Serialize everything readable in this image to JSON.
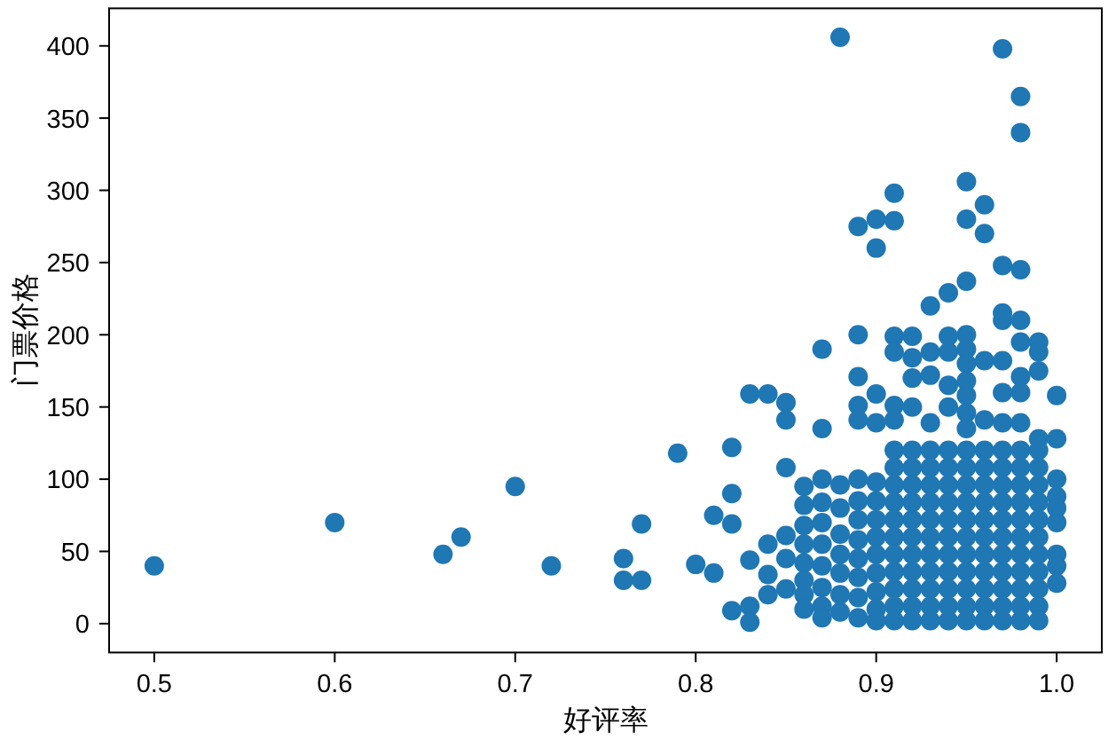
{
  "chart_data": {
    "type": "scatter",
    "xlabel": "好评率",
    "ylabel": "门票价格",
    "color": "#1f77b4",
    "marker": "circle",
    "xlim": [
      0.475,
      1.025
    ],
    "ylim": [
      -20,
      426
    ],
    "xticks": [
      0.5,
      0.6,
      0.7,
      0.8,
      0.9,
      {
        "value": 1.0,
        "label": "1.0"
      }
    ],
    "yticks": [
      0,
      50,
      100,
      150,
      200,
      250,
      300,
      350,
      400
    ],
    "x": [
      0.5,
      0.6,
      0.66,
      0.67,
      0.7,
      0.72,
      0.76,
      0.76,
      0.77,
      0.77,
      0.79,
      0.8,
      0.81,
      0.81,
      0.82,
      0.82,
      0.82,
      0.82,
      0.83,
      0.83,
      0.83,
      0.83,
      0.84,
      0.84,
      0.84,
      0.84,
      0.85,
      0.85,
      0.85,
      0.85,
      0.85,
      0.85,
      0.86,
      0.86,
      0.86,
      0.86,
      0.86,
      0.86,
      0.86,
      0.86,
      0.87,
      0.87,
      0.87,
      0.87,
      0.87,
      0.87,
      0.87,
      0.87,
      0.87,
      0.87,
      0.88,
      0.88,
      0.88,
      0.88,
      0.88,
      0.88,
      0.88,
      0.88,
      0.89,
      0.89,
      0.89,
      0.89,
      0.89,
      0.89,
      0.89,
      0.89,
      0.89,
      0.89,
      0.89,
      0.89,
      0.89,
      0.9,
      0.9,
      0.9,
      0.9,
      0.9,
      0.9,
      0.9,
      0.9,
      0.9,
      0.9,
      0.9,
      0.9,
      0.9,
      0.91,
      0.91,
      0.91,
      0.91,
      0.91,
      0.91,
      0.91,
      0.91,
      0.91,
      0.91,
      0.91,
      0.91,
      0.91,
      0.91,
      0.91,
      0.91,
      0.91,
      0.92,
      0.92,
      0.92,
      0.92,
      0.92,
      0.92,
      0.92,
      0.92,
      0.92,
      0.92,
      0.92,
      0.92,
      0.92,
      0.92,
      0.92,
      0.93,
      0.93,
      0.93,
      0.93,
      0.93,
      0.93,
      0.93,
      0.93,
      0.93,
      0.93,
      0.93,
      0.93,
      0.93,
      0.93,
      0.93,
      0.94,
      0.94,
      0.94,
      0.94,
      0.94,
      0.94,
      0.94,
      0.94,
      0.94,
      0.94,
      0.94,
      0.94,
      0.94,
      0.94,
      0.94,
      0.94,
      0.95,
      0.95,
      0.95,
      0.95,
      0.95,
      0.95,
      0.95,
      0.95,
      0.95,
      0.95,
      0.95,
      0.95,
      0.95,
      0.95,
      0.95,
      0.95,
      0.95,
      0.95,
      0.95,
      0.95,
      0.95,
      0.96,
      0.96,
      0.96,
      0.96,
      0.96,
      0.96,
      0.96,
      0.96,
      0.96,
      0.96,
      0.96,
      0.96,
      0.96,
      0.96,
      0.96,
      0.97,
      0.97,
      0.97,
      0.97,
      0.97,
      0.97,
      0.97,
      0.97,
      0.97,
      0.97,
      0.97,
      0.97,
      0.97,
      0.97,
      0.97,
      0.97,
      0.97,
      0.97,
      0.98,
      0.98,
      0.98,
      0.98,
      0.98,
      0.98,
      0.98,
      0.98,
      0.98,
      0.98,
      0.98,
      0.98,
      0.98,
      0.98,
      0.98,
      0.98,
      0.98,
      0.98,
      0.98,
      0.99,
      0.99,
      0.99,
      0.99,
      0.99,
      0.99,
      0.99,
      0.99,
      0.99,
      0.99,
      0.99,
      0.99,
      0.99,
      0.99,
      0.99,
      1.0,
      1.0,
      1.0,
      1.0,
      1.0,
      1.0,
      1.0,
      1.0,
      1.0
    ],
    "values": [
      40,
      70,
      48,
      60,
      95,
      40,
      45,
      30,
      69,
      30,
      118,
      41,
      75,
      35,
      122,
      90,
      69,
      9,
      159,
      44,
      12,
      1,
      159,
      55,
      34,
      20,
      153,
      141,
      108,
      61,
      45,
      24,
      95,
      82,
      68,
      55,
      42,
      30,
      20,
      10,
      190,
      135,
      100,
      84,
      70,
      55,
      40,
      25,
      12,
      4,
      406,
      96,
      80,
      62,
      48,
      35,
      20,
      8,
      275,
      200,
      171,
      151,
      141,
      100,
      85,
      72,
      58,
      45,
      32,
      18,
      4,
      280,
      260,
      159,
      139,
      98,
      85,
      72,
      60,
      48,
      35,
      22,
      10,
      2,
      298,
      279,
      199,
      188,
      151,
      141,
      120,
      108,
      96,
      84,
      72,
      60,
      48,
      36,
      24,
      12,
      2,
      199,
      184,
      170,
      150,
      120,
      108,
      96,
      84,
      72,
      60,
      48,
      36,
      24,
      12,
      2,
      220,
      188,
      172,
      139,
      120,
      108,
      96,
      84,
      72,
      60,
      48,
      36,
      24,
      12,
      2,
      229,
      199,
      188,
      165,
      150,
      120,
      108,
      96,
      84,
      72,
      60,
      48,
      36,
      24,
      12,
      2,
      306,
      280,
      237,
      200,
      190,
      180,
      168,
      158,
      146,
      135,
      120,
      108,
      96,
      84,
      72,
      60,
      48,
      36,
      24,
      12,
      2,
      290,
      270,
      182,
      141,
      120,
      108,
      96,
      84,
      72,
      60,
      48,
      36,
      24,
      12,
      2,
      398,
      248,
      215,
      210,
      182,
      160,
      139,
      120,
      108,
      96,
      84,
      72,
      60,
      48,
      36,
      24,
      12,
      2,
      365,
      340,
      245,
      210,
      195,
      171,
      160,
      139,
      120,
      108,
      96,
      84,
      72,
      60,
      48,
      36,
      24,
      12,
      2,
      195,
      188,
      175,
      128,
      120,
      108,
      96,
      84,
      72,
      60,
      48,
      36,
      24,
      12,
      2,
      158,
      128,
      100,
      88,
      80,
      70,
      48,
      40,
      28
    ]
  }
}
